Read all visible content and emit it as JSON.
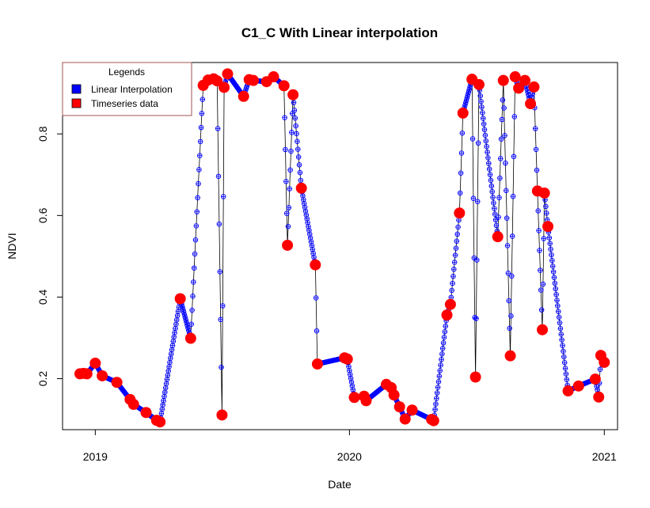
{
  "chart_data": {
    "type": "line",
    "title": "C1_C With Linear interpolation",
    "xlabel": "Date",
    "ylabel": "NDVI",
    "xlim": [
      "2018-11-15",
      "2021-01-20"
    ],
    "ylim": [
      0.075,
      0.975
    ],
    "x_ticks": [
      {
        "date": "2019-01-01",
        "label": "2019"
      },
      {
        "date": "2020-01-01",
        "label": "2020"
      },
      {
        "date": "2021-01-01",
        "label": "2021"
      }
    ],
    "y_ticks": [
      0.2,
      0.4,
      0.6,
      0.8
    ],
    "grid": false,
    "legend": {
      "title": "Legends",
      "position": "top-left",
      "entries": [
        {
          "label": "Linear Interpolation",
          "color": "#0000ff"
        },
        {
          "label": "Timeseries data",
          "color": "#ff0000"
        }
      ]
    },
    "series": [
      {
        "name": "Timeseries data",
        "color": "#ff0000",
        "points": [
          [
            "2018-12-10",
            0.212
          ],
          [
            "2018-12-15",
            0.213
          ],
          [
            "2018-12-20",
            0.212
          ],
          [
            "2019-01-01",
            0.238
          ],
          [
            "2019-01-11",
            0.207
          ],
          [
            "2019-02-01",
            0.191
          ],
          [
            "2019-02-20",
            0.149
          ],
          [
            "2019-02-25",
            0.137
          ],
          [
            "2019-03-15",
            0.117
          ],
          [
            "2019-03-30",
            0.098
          ],
          [
            "2019-04-04",
            0.094
          ],
          [
            "2019-05-03",
            0.396
          ],
          [
            "2019-05-18",
            0.299
          ],
          [
            "2019-06-05",
            0.919
          ],
          [
            "2019-06-12",
            0.932
          ],
          [
            "2019-06-20",
            0.935
          ],
          [
            "2019-06-25",
            0.93
          ],
          [
            "2019-07-02",
            0.111
          ],
          [
            "2019-07-05",
            0.914
          ],
          [
            "2019-07-10",
            0.947
          ],
          [
            "2019-08-02",
            0.892
          ],
          [
            "2019-08-10",
            0.933
          ],
          [
            "2019-08-16",
            0.931
          ],
          [
            "2019-09-04",
            0.928
          ],
          [
            "2019-09-14",
            0.94
          ],
          [
            "2019-09-29",
            0.918
          ],
          [
            "2019-10-04",
            0.527
          ],
          [
            "2019-10-12",
            0.896
          ],
          [
            "2019-10-24",
            0.667
          ],
          [
            "2019-11-13",
            0.479
          ],
          [
            "2019-11-16",
            0.236
          ],
          [
            "2019-12-25",
            0.251
          ],
          [
            "2019-12-29",
            0.248
          ],
          [
            "2020-01-08",
            0.154
          ],
          [
            "2020-01-22",
            0.157
          ],
          [
            "2020-01-25",
            0.146
          ],
          [
            "2020-02-23",
            0.186
          ],
          [
            "2020-03-01",
            0.178
          ],
          [
            "2020-03-05",
            0.16
          ],
          [
            "2020-03-13",
            0.131
          ],
          [
            "2020-03-21",
            0.101
          ],
          [
            "2020-03-31",
            0.123
          ],
          [
            "2020-04-28",
            0.1
          ],
          [
            "2020-05-01",
            0.097
          ],
          [
            "2020-05-20",
            0.356
          ],
          [
            "2020-05-25",
            0.382
          ],
          [
            "2020-06-07",
            0.606
          ],
          [
            "2020-06-12",
            0.851
          ],
          [
            "2020-06-25",
            0.934
          ],
          [
            "2020-06-30",
            0.204
          ],
          [
            "2020-07-05",
            0.921
          ],
          [
            "2020-08-01",
            0.548
          ],
          [
            "2020-08-09",
            0.931
          ],
          [
            "2020-08-19",
            0.256
          ],
          [
            "2020-08-26",
            0.94
          ],
          [
            "2020-08-31",
            0.912
          ],
          [
            "2020-09-09",
            0.931
          ],
          [
            "2020-09-17",
            0.874
          ],
          [
            "2020-09-22",
            0.915
          ],
          [
            "2020-09-27",
            0.66
          ],
          [
            "2020-10-04",
            0.32
          ],
          [
            "2020-10-07",
            0.655
          ],
          [
            "2020-10-12",
            0.573
          ],
          [
            "2020-11-10",
            0.17
          ],
          [
            "2020-11-25",
            0.182
          ],
          [
            "2020-12-19",
            0.199
          ],
          [
            "2020-12-24",
            0.155
          ],
          [
            "2020-12-27",
            0.257
          ],
          [
            "2021-01-01",
            0.24
          ]
        ]
      },
      {
        "name": "Linear Interpolation",
        "color": "#0000ff",
        "interpolation": "linear, daily"
      }
    ]
  }
}
